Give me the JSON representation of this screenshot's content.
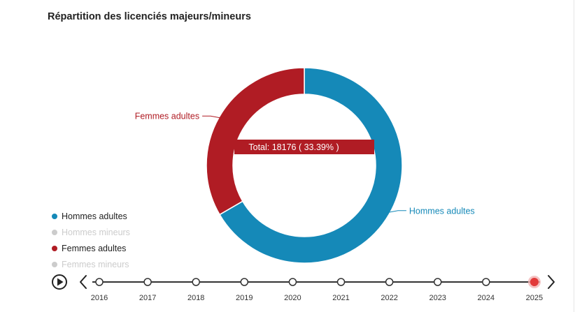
{
  "title": "Répartition des licenciés majeurs/mineurs",
  "colors": {
    "hommes_adultes": "#1589b8",
    "femmes_adultes": "#b01c24",
    "hidden": "#cccccc"
  },
  "chart_data": {
    "type": "pie",
    "title": "Répartition des licenciés majeurs/mineurs",
    "series": [
      {
        "name": "Hommes adultes",
        "percent": 66.61,
        "visible": true
      },
      {
        "name": "Hommes mineurs",
        "visible": false
      },
      {
        "name": "Femmes adultes",
        "value": 18176,
        "percent": 33.39,
        "visible": true
      },
      {
        "name": "Femmes mineurs",
        "visible": false
      }
    ],
    "legend_position": "bottom-left",
    "tooltip": "Total: 18176 ( 33.39% )",
    "donut": true
  },
  "timeline": {
    "years": [
      "2016",
      "2017",
      "2018",
      "2019",
      "2020",
      "2021",
      "2022",
      "2023",
      "2024",
      "2025"
    ],
    "selected": "2025"
  }
}
